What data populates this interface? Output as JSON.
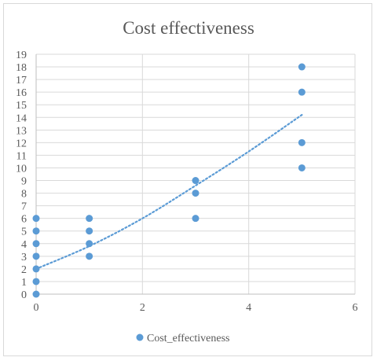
{
  "chart_data": {
    "type": "scatter",
    "title": "Cost effectiveness",
    "xlabel": "",
    "ylabel": "",
    "xlim": [
      0,
      6
    ],
    "ylim": [
      0,
      19
    ],
    "x_ticks": [
      0,
      2,
      4,
      6
    ],
    "y_ticks": [
      0,
      1,
      2,
      3,
      4,
      5,
      6,
      7,
      8,
      9,
      10,
      11,
      12,
      13,
      14,
      15,
      16,
      17,
      18,
      19
    ],
    "grid": true,
    "legend_position": "bottom",
    "color": "#5b9bd5",
    "series": [
      {
        "name": "Cost_effectiveness",
        "points": [
          [
            0,
            0
          ],
          [
            0,
            1
          ],
          [
            0,
            2
          ],
          [
            0,
            3
          ],
          [
            0,
            4
          ],
          [
            0,
            5
          ],
          [
            0,
            6
          ],
          [
            1,
            3
          ],
          [
            1,
            4
          ],
          [
            1,
            5
          ],
          [
            1,
            6
          ],
          [
            3,
            6
          ],
          [
            3,
            8
          ],
          [
            3,
            9
          ],
          [
            5,
            10
          ],
          [
            5,
            12
          ],
          [
            5,
            16
          ],
          [
            5,
            18
          ]
        ]
      }
    ],
    "trendline": {
      "style": "dotted",
      "x_range": [
        0,
        5
      ],
      "points": [
        [
          0,
          2
        ],
        [
          1,
          3.8
        ],
        [
          2,
          6
        ],
        [
          3,
          8.6
        ],
        [
          4,
          11.3
        ],
        [
          5,
          14.2
        ]
      ]
    }
  }
}
